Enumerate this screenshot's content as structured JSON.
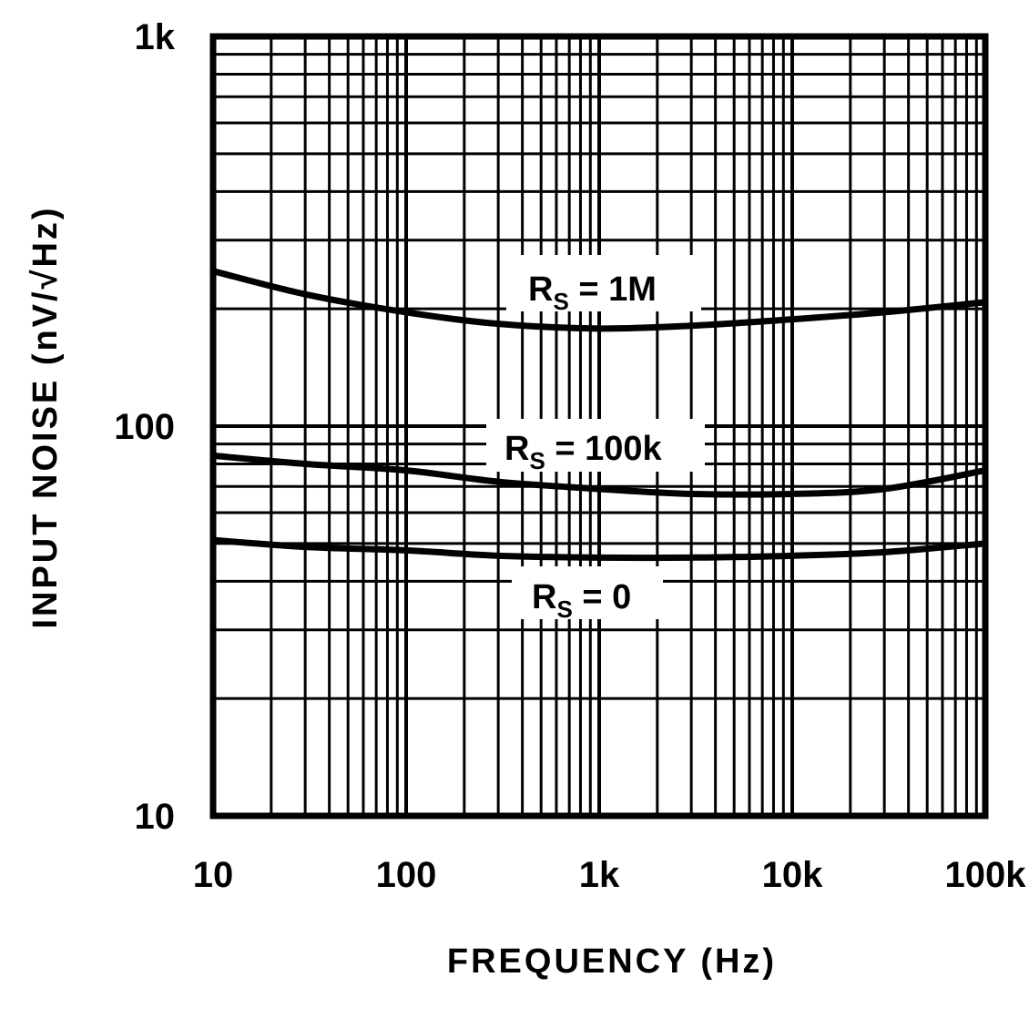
{
  "chart_data": {
    "type": "line",
    "title": "",
    "xlabel": "FREQUENCY (Hz)",
    "ylabel": "INPUT NOISE (nV/√Hz)",
    "xscale": "log",
    "yscale": "log",
    "xlim": [
      10,
      100000
    ],
    "ylim": [
      10,
      1000
    ],
    "grid": true,
    "legend_position": "inline labels",
    "x_ticks": [
      {
        "value": 10,
        "label": "10"
      },
      {
        "value": 100,
        "label": "100"
      },
      {
        "value": 1000,
        "label": "1k"
      },
      {
        "value": 10000,
        "label": "10k"
      },
      {
        "value": 100000,
        "label": "100k"
      }
    ],
    "y_ticks": [
      {
        "value": 10,
        "label": "10"
      },
      {
        "value": 100,
        "label": "100"
      },
      {
        "value": 1000,
        "label": "1k"
      }
    ],
    "x": [
      10,
      30,
      100,
      300,
      1000,
      3000,
      10000,
      30000,
      100000
    ],
    "series": [
      {
        "name": "RS = 1M",
        "label_main": "R",
        "label_sub": "S",
        "label_rest": " = 1M",
        "values": [
          250,
          218,
          196,
          183,
          178,
          181,
          188,
          196,
          208
        ]
      },
      {
        "name": "RS = 100k",
        "label_main": "R",
        "label_sub": "S",
        "label_rest": " = 100k",
        "values": [
          84,
          80,
          77,
          72,
          69,
          67,
          67,
          69,
          77
        ]
      },
      {
        "name": "RS = 0",
        "label_main": "R",
        "label_sub": "S",
        "label_rest": " = 0",
        "values": [
          51,
          49,
          48,
          46.5,
          46,
          46,
          46.5,
          47.5,
          50
        ]
      }
    ],
    "annotations": [
      {
        "text": "RS = 1M",
        "x": 1000,
        "y": 310
      },
      {
        "text": "RS = 100k",
        "x": 1000,
        "y": 103
      },
      {
        "text": "RS = 0",
        "x": 1000,
        "y": 40
      }
    ]
  }
}
